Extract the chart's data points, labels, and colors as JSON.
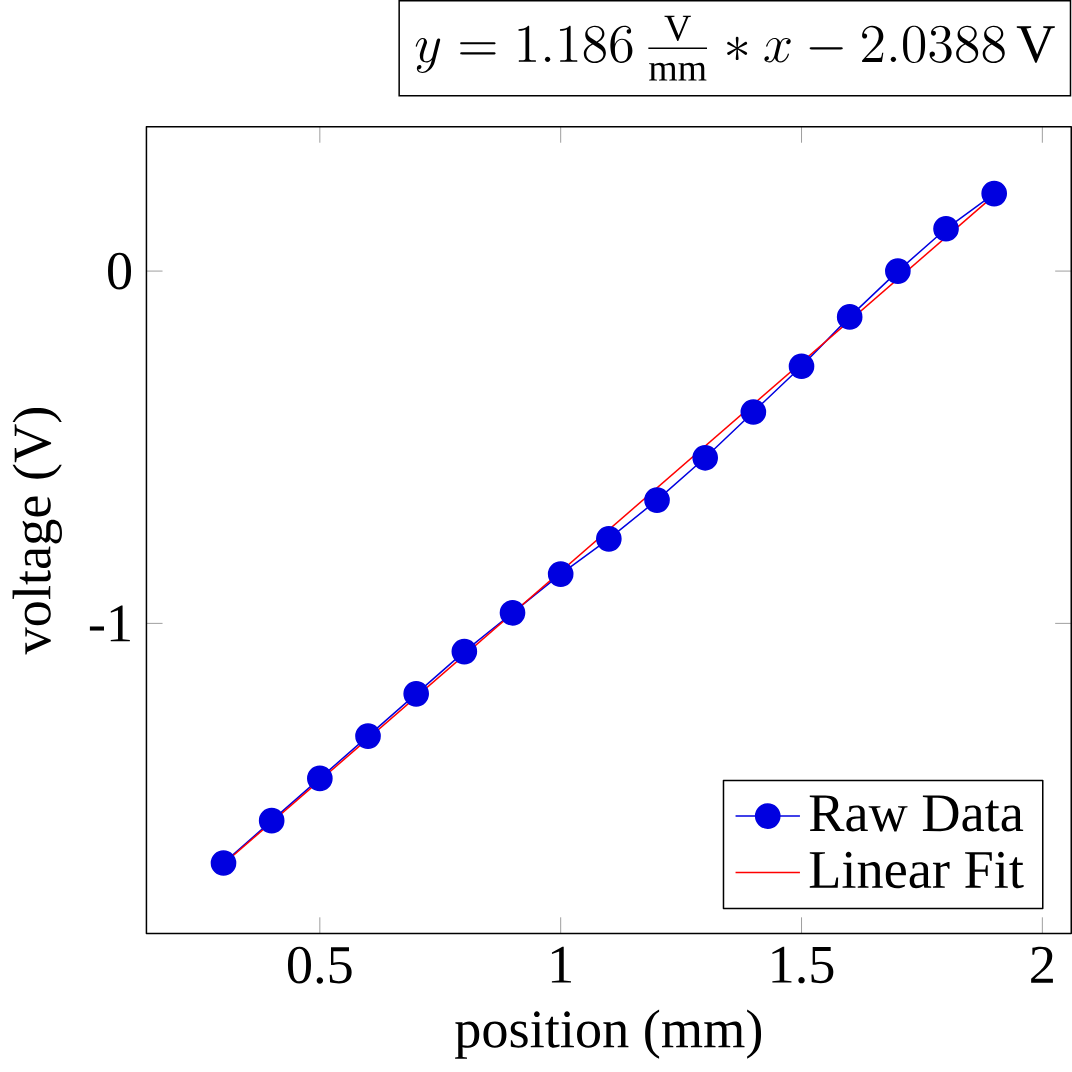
{
  "chart_data": {
    "type": "line",
    "title": "y = 1.186\\,\\frac{\\mathrm{V}}{\\mathrm{mm}} * x - 2.0388\\,\\mathrm{V}",
    "xlabel": "position (mm)",
    "ylabel": "voltage (V)",
    "xlim": [
      0.14,
      2.06
    ],
    "ylim": [
      -1.88,
      0.41
    ],
    "xticks": [
      0.5,
      1,
      {
        "value": 1.5,
        "label": "1.5"
      },
      2
    ],
    "yticks": [
      -1,
      0
    ],
    "x": [
      0.3,
      0.4,
      0.5,
      0.6,
      0.7,
      0.8,
      0.9,
      1.0,
      1.1,
      1.2,
      1.3,
      1.4,
      1.5,
      1.6,
      1.7,
      1.8,
      1.9
    ],
    "series": [
      {
        "name": "Raw Data",
        "color": "#0000e0",
        "marker": "circle",
        "values": [
          -1.68,
          -1.56,
          -1.44,
          -1.32,
          -1.2,
          -1.08,
          -0.97,
          -0.86,
          -0.76,
          -0.65,
          -0.53,
          -0.4,
          -0.27,
          -0.13,
          0.0,
          0.12,
          0.22
        ]
      },
      {
        "name": "Linear Fit",
        "color": "#ff0000",
        "marker": "none",
        "x": [
          0.3,
          1.9
        ],
        "values": [
          -1.683,
          0.215
        ]
      }
    ],
    "legend": "bottom right",
    "grid": false
  }
}
